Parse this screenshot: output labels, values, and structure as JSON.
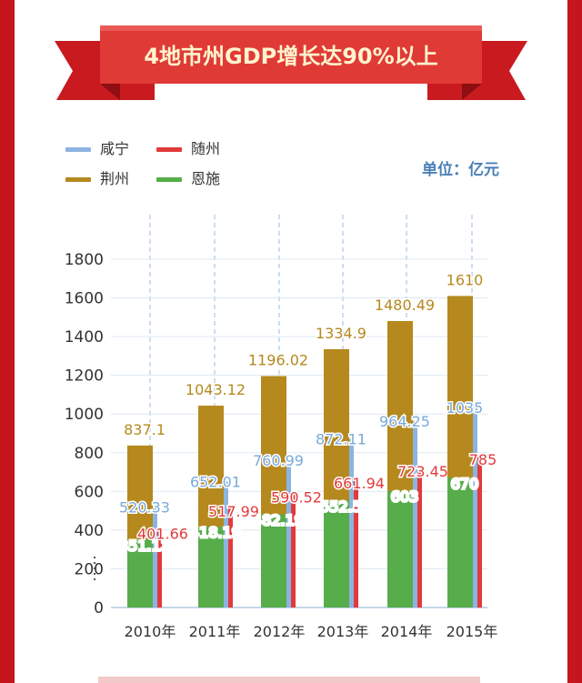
{
  "banner": {
    "title": "4地市州GDP增长达90%以上"
  },
  "legend": [
    {
      "key": "xianning",
      "label": "咸宁",
      "color": "#8cb4e0"
    },
    {
      "key": "suizhou",
      "label": "随州",
      "color": "#e23a3c"
    },
    {
      "key": "jingzhou",
      "label": "荆州",
      "color": "#b5891e"
    },
    {
      "key": "enshi",
      "label": "恩施",
      "color": "#56ad4a"
    }
  ],
  "unit_label": "单位：亿元",
  "chart_data": {
    "type": "bar",
    "categories": [
      "2010年",
      "2011年",
      "2012年",
      "2013年",
      "2014年",
      "2015年"
    ],
    "ylim": [
      0,
      1800
    ],
    "yticks": [
      0,
      200,
      400,
      600,
      800,
      1000,
      1200,
      1400,
      1600,
      1800
    ],
    "grid": true,
    "legend_position": "top-left",
    "series": [
      {
        "name": "荆州",
        "color": "#b5891e",
        "values": [
          837.1,
          1043.12,
          1196.02,
          1334.9,
          1480.49,
          1610
        ]
      },
      {
        "name": "恩施",
        "color": "#56ad4a",
        "values": [
          351.13,
          418.19,
          482.19,
          552.5,
          603,
          670
        ]
      },
      {
        "name": "咸宁",
        "color": "#8cb4e0",
        "values": [
          520.33,
          652.01,
          760.99,
          872.11,
          964.25,
          1035
        ]
      },
      {
        "name": "随州",
        "color": "#e23a3c",
        "values": [
          401.66,
          517.99,
          590.52,
          661.94,
          723.45,
          785
        ]
      }
    ]
  }
}
